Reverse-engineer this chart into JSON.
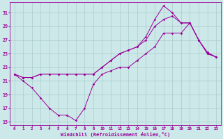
{
  "xlabel": "Windchill (Refroidissement éolien,°C)",
  "xlim": [
    -0.5,
    23.5
  ],
  "ylim": [
    14.5,
    32.5
  ],
  "yticks": [
    15,
    17,
    19,
    21,
    23,
    25,
    27,
    29,
    31
  ],
  "xticks": [
    0,
    1,
    2,
    3,
    4,
    5,
    6,
    7,
    8,
    9,
    10,
    11,
    12,
    13,
    14,
    15,
    16,
    17,
    18,
    19,
    20,
    21,
    22,
    23
  ],
  "background_color": "#cce8e8",
  "grid_color": "#aacccc",
  "line_color": "#990099",
  "line1_x": [
    0,
    1,
    2,
    3,
    4,
    5,
    6,
    7,
    8,
    9,
    10,
    11,
    12,
    13,
    14,
    15,
    16,
    17,
    18,
    19,
    20,
    21,
    22,
    23
  ],
  "line1_y": [
    22,
    21,
    20,
    18.5,
    17,
    16,
    16,
    15.2,
    17,
    20.5,
    22,
    22.5,
    23,
    23,
    24,
    25,
    26,
    28,
    28,
    28,
    29.5,
    27,
    25.2,
    24.5
  ],
  "line2_x": [
    0,
    1,
    2,
    3,
    4,
    5,
    6,
    7,
    8,
    9,
    10,
    11,
    12,
    13,
    14,
    15,
    16,
    17,
    18,
    19,
    20,
    21,
    22,
    23
  ],
  "line2_y": [
    22,
    21.5,
    21.5,
    22,
    22,
    22,
    22,
    22,
    22,
    22,
    23,
    24,
    25,
    25.5,
    26,
    27,
    29,
    30,
    30.5,
    29.5,
    29.5,
    27,
    25,
    24.5
  ],
  "line3_x": [
    0,
    1,
    2,
    3,
    4,
    5,
    6,
    7,
    8,
    9,
    10,
    11,
    12,
    13,
    14,
    15,
    16,
    17,
    18,
    19,
    20,
    21,
    22,
    23
  ],
  "line3_y": [
    22,
    21.5,
    21.5,
    22,
    22,
    22,
    22,
    22,
    22,
    22,
    23,
    24,
    25,
    25.5,
    26,
    27.5,
    30,
    32,
    31,
    29.5,
    29.5,
    27,
    25,
    24.5
  ]
}
